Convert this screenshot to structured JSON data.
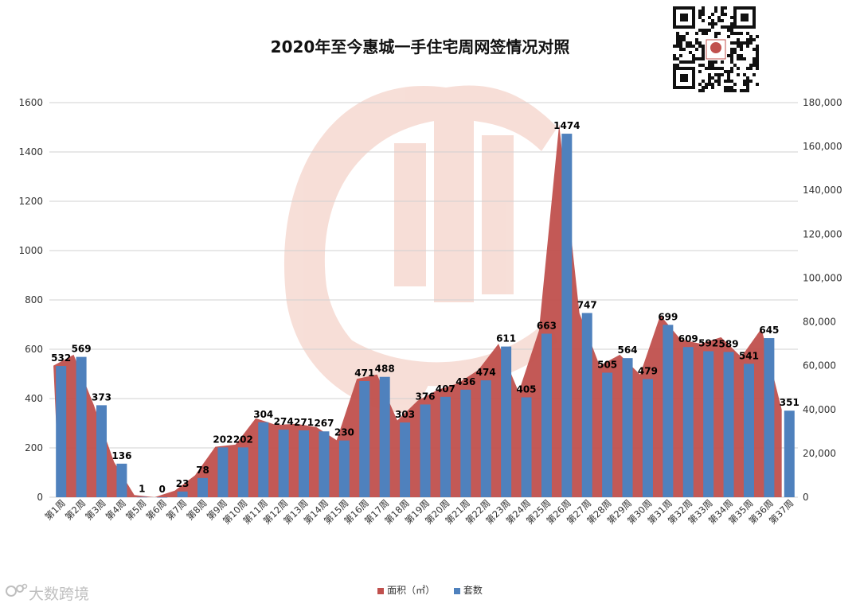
{
  "chart_data": {
    "type": "bar+area",
    "title": "2020年至今惠城一手住宅周网签情况对照",
    "categories": [
      "第1周",
      "第2周",
      "第3周",
      "第4周",
      "第5周",
      "第6周",
      "第7周",
      "第8周",
      "第9周",
      "第10周",
      "第11周",
      "第12周",
      "第13周",
      "第14周",
      "第15周",
      "第16周",
      "第17周",
      "第18周",
      "第19周",
      "第20周",
      "第21周",
      "第22周",
      "第23周",
      "第24周",
      "第25周",
      "第26周",
      "第27周",
      "第28周",
      "第29周",
      "第30周",
      "第31周",
      "第32周",
      "第33周",
      "第34周",
      "第35周",
      "第36周",
      "第37周"
    ],
    "series": [
      {
        "name": "面积（㎡）",
        "type": "area",
        "axis": "right",
        "color": "#c0504d",
        "values": [
          60000,
          65000,
          42000,
          16000,
          1000,
          0,
          3000,
          10000,
          23000,
          24000,
          36000,
          33000,
          33500,
          32000,
          26000,
          54000,
          56000,
          35000,
          44000,
          49000,
          52000,
          58000,
          70000,
          48000,
          76000,
          170000,
          84000,
          60000,
          65000,
          56000,
          83000,
          72000,
          70000,
          73000,
          64000,
          77000,
          40000
        ]
      },
      {
        "name": "套数",
        "type": "bar",
        "axis": "left",
        "color": "#4f81bd",
        "values": [
          532,
          569,
          373,
          136,
          1,
          0,
          23,
          78,
          202,
          202,
          304,
          274,
          271,
          267,
          230,
          471,
          488,
          303,
          376,
          407,
          436,
          474,
          611,
          405,
          663,
          1474,
          747,
          505,
          564,
          479,
          699,
          609,
          592,
          589,
          541,
          645,
          351
        ],
        "labels": [
          "532",
          "569",
          "373",
          "136",
          "1",
          "0",
          "23",
          "78",
          "202",
          "202",
          "304",
          "274",
          "271",
          "267",
          "230",
          "471",
          "488",
          "303",
          "376",
          "407",
          "436",
          "474",
          "611",
          "405",
          "663",
          "1474",
          "747",
          "505",
          "564",
          "479",
          "699",
          "609",
          "592",
          "589",
          "541",
          "645",
          "351"
        ]
      }
    ],
    "y_left": {
      "min": 0,
      "max": 1600,
      "ticks": [
        "0",
        "200",
        "400",
        "600",
        "800",
        "1000",
        "1200",
        "1400",
        "1600"
      ]
    },
    "y_right": {
      "min": 0,
      "max": 180000,
      "ticks": [
        "0",
        "20,000",
        "40,000",
        "60,000",
        "80,000",
        "100,000",
        "120,000",
        "140,000",
        "160,000",
        "180,000"
      ]
    },
    "grid": true,
    "legend_position": "bottom"
  },
  "legend": {
    "area_label": "面积（㎡）",
    "bar_label": "套数"
  },
  "watermark": {
    "text": "大数跨境"
  },
  "colors": {
    "area": "#c0504d",
    "bar": "#4f81bd",
    "grid": "#d0d0d0",
    "watermark": "#f3c7b8"
  },
  "icons": {
    "qr": "qr-code-icon",
    "logo": "dashuju-logo-icon"
  }
}
